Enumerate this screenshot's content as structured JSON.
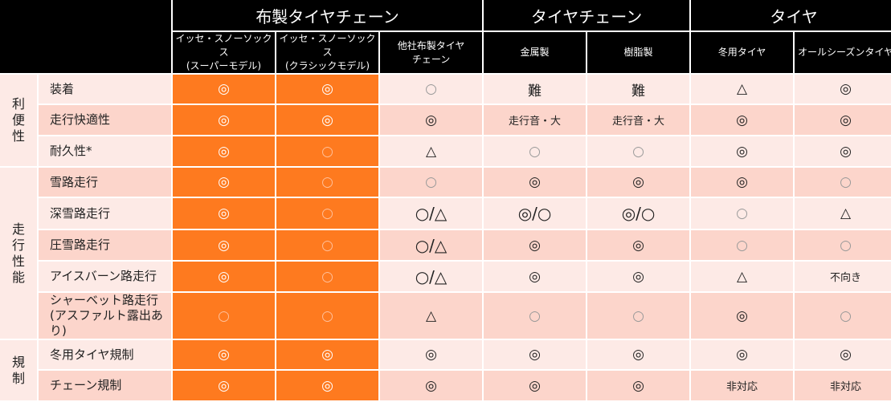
{
  "header": {
    "groups": [
      {
        "label": "布製タイヤチェーン",
        "span": 3
      },
      {
        "label": "タイヤチェーン",
        "span": 2
      },
      {
        "label": "タイヤ",
        "span": 2
      }
    ],
    "columns": [
      "イッセ・スノーソックス\n(スーパーモデル)",
      "イッセ・スノーソックス\n(クラシックモデル)",
      "他社布製タイヤ\nチェーン",
      "金属製",
      "樹脂製",
      "冬用タイヤ",
      "オールシーズンタイヤ"
    ]
  },
  "colors": {
    "highlight": "#fe7a1f",
    "row_light": "#fdeae6",
    "row_dark": "#fcd5cb",
    "header": "#000000"
  },
  "categories": [
    {
      "label": "利\n便\n性",
      "rows": [
        {
          "label": "装着",
          "values": [
            "◎",
            "◎",
            "○",
            "難",
            "難",
            "△",
            "◎"
          ]
        },
        {
          "label": "走行快適性",
          "values": [
            "◎",
            "◎",
            "◎",
            "走行音・大",
            "走行音・大",
            "◎",
            "◎"
          ]
        },
        {
          "label": "耐久性*",
          "values": [
            "◎",
            "○",
            "△",
            "○",
            "○",
            "◎",
            "◎"
          ]
        }
      ]
    },
    {
      "label": "走\n行\n性\n能",
      "rows": [
        {
          "label": "雪路走行",
          "values": [
            "◎",
            "○",
            "○",
            "◎",
            "◎",
            "◎",
            "○"
          ]
        },
        {
          "label": "深雪路走行",
          "values": [
            "◎",
            "○",
            "○/△",
            "◎/○",
            "◎/○",
            "○",
            "△"
          ]
        },
        {
          "label": "圧雪路走行",
          "values": [
            "◎",
            "○",
            "○/△",
            "◎",
            "◎",
            "○",
            "○"
          ]
        },
        {
          "label": "アイスバーン路走行",
          "values": [
            "◎",
            "○",
            "○/△",
            "◎",
            "◎",
            "△",
            "不向き"
          ]
        },
        {
          "label": "シャーベット路走行\n(アスファルト露出あり)",
          "values": [
            "○",
            "○",
            "△",
            "○",
            "○",
            "◎",
            "○"
          ]
        }
      ]
    },
    {
      "label": "規\n制",
      "rows": [
        {
          "label": "冬用タイヤ規制",
          "values": [
            "◎",
            "◎",
            "◎",
            "◎",
            "◎",
            "◎",
            "◎"
          ]
        },
        {
          "label": "チェーン規制",
          "values": [
            "◎",
            "◎",
            "◎",
            "◎",
            "◎",
            "非対応",
            "非対応"
          ]
        }
      ]
    }
  ]
}
